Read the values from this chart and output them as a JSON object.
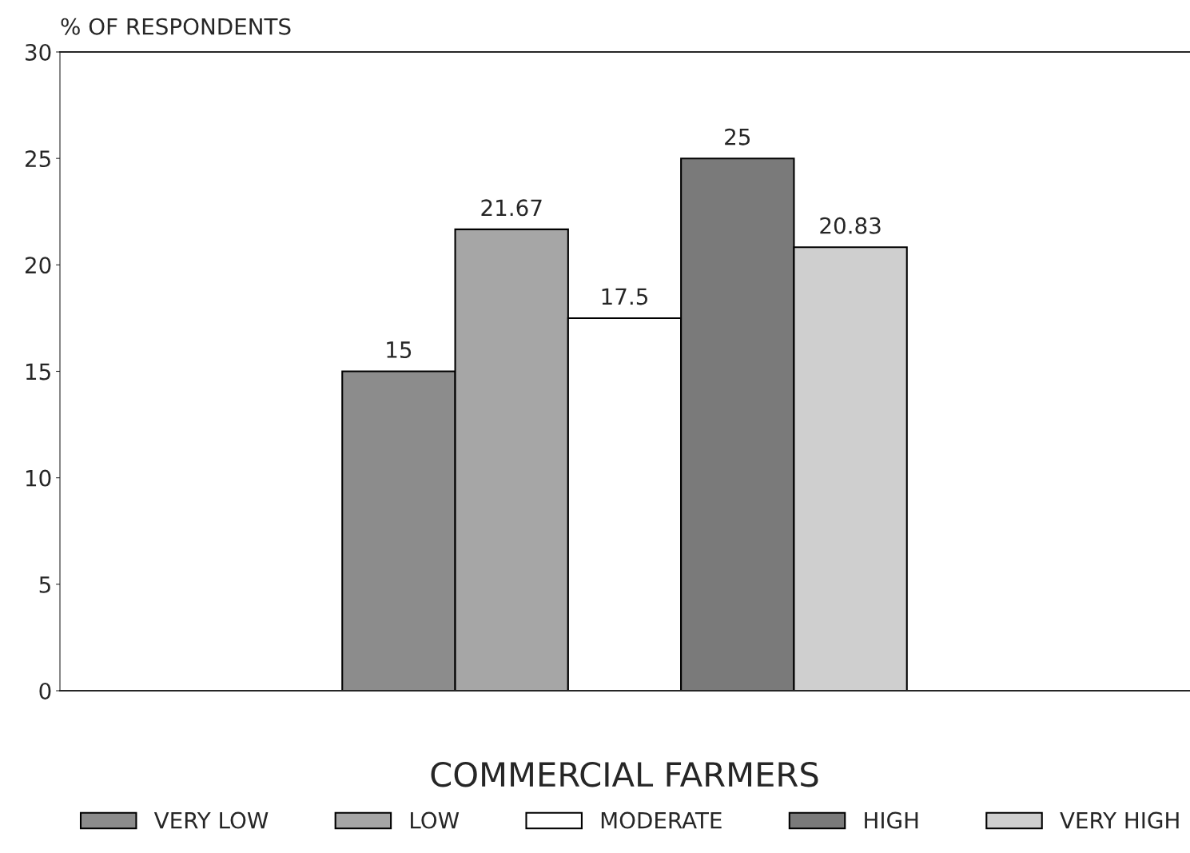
{
  "chart_data": {
    "type": "bar",
    "ylabel": "% OF RESPONDENTS",
    "xlabel": "COMMERCIAL FARMERS",
    "categories": [
      null
    ],
    "series": [
      {
        "name": "VERY LOW",
        "color": "#8c8c8c",
        "values": [
          15
        ]
      },
      {
        "name": "LOW",
        "color": "#a6a6a6",
        "values": [
          21.67
        ]
      },
      {
        "name": "MODERATE",
        "color": "#ffffff",
        "values": [
          17.5
        ]
      },
      {
        "name": "HIGH",
        "color": "#7a7a7a",
        "values": [
          25
        ]
      },
      {
        "name": "VERY HIGH",
        "color": "#cfcfcf",
        "values": [
          20.83
        ]
      }
    ],
    "ylim": [
      0,
      30
    ],
    "yticks": [
      0,
      5,
      10,
      15,
      20,
      25,
      30
    ],
    "grid": false,
    "legend": "bottom",
    "data_labels": true
  }
}
